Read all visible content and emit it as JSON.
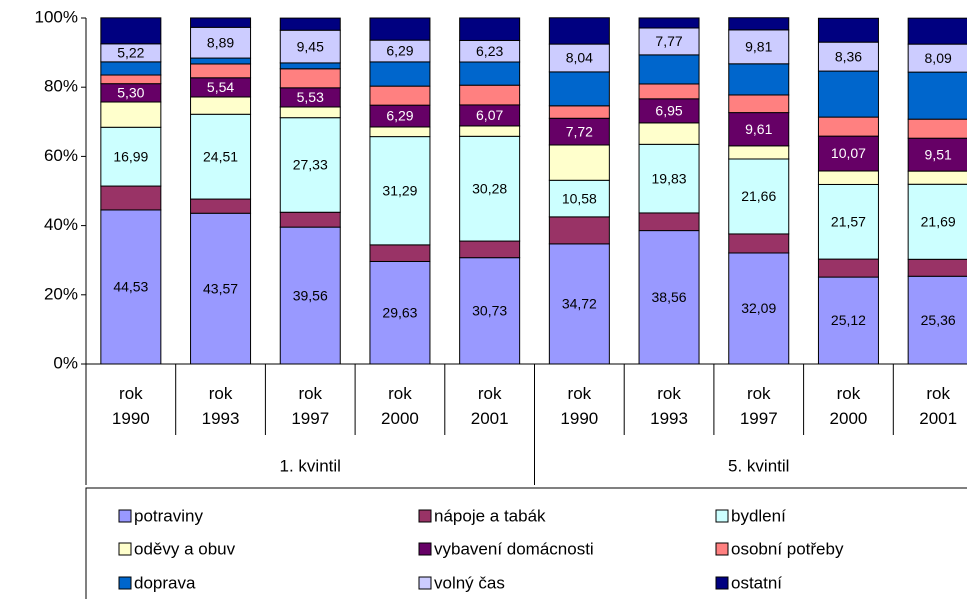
{
  "chart_data": {
    "type": "stacked_bar_percent",
    "groups": [
      {
        "name": "1. kvintil",
        "categories": [
          "rok 1990",
          "rok 1993",
          "rok 1997",
          "rok 2000",
          "rok 2001"
        ]
      },
      {
        "name": "5. kvintil",
        "categories": [
          "rok 1990",
          "rok 1993",
          "rok 1997",
          "rok 2000",
          "rok 2001"
        ]
      }
    ],
    "ylim": [
      0,
      100
    ],
    "yticks": [
      {
        "value": 0,
        "label": "0%"
      },
      {
        "value": 20,
        "label": "20%"
      },
      {
        "value": 40,
        "label": "40%"
      },
      {
        "value": 60,
        "label": "60%"
      },
      {
        "value": 80,
        "label": "80%"
      },
      {
        "value": 100,
        "label": "100%"
      }
    ],
    "grid": false,
    "legend": "bottom",
    "series": [
      {
        "name": "potraviny",
        "color": "#9999ff",
        "label_color": "#000000",
        "values": [
          44.53,
          43.57,
          39.56,
          29.63,
          30.73,
          34.72,
          38.56,
          32.09,
          25.12,
          25.36
        ],
        "value_labels": [
          "44,53",
          "43,57",
          "39,56",
          "29,63",
          "30,73",
          "34,72",
          "38,56",
          "32,09",
          "25,12",
          "25,36"
        ]
      },
      {
        "name": "nápoje a tabák",
        "color": "#993366",
        "label_color": "#ffffff",
        "values": [
          6.9,
          4.1,
          4.3,
          4.8,
          4.8,
          7.8,
          5.1,
          5.5,
          5.2,
          4.9
        ],
        "value_labels": [
          null,
          null,
          null,
          null,
          null,
          null,
          null,
          null,
          null,
          null
        ]
      },
      {
        "name": "bydlení",
        "color": "#ccffff",
        "label_color": "#000000",
        "values": [
          16.99,
          24.51,
          27.33,
          31.29,
          30.28,
          10.58,
          19.83,
          21.66,
          21.57,
          21.69
        ],
        "value_labels": [
          "16,99",
          "24,51",
          "27,33",
          "31,29",
          "30,28",
          "10,58",
          "19,83",
          "21,66",
          "21,57",
          "21,69"
        ]
      },
      {
        "name": "oděvy a obuv",
        "color": "#ffffcc",
        "label_color": "#000000",
        "values": [
          7.3,
          5.0,
          3.1,
          2.8,
          3.0,
          10.2,
          6.2,
          3.8,
          3.9,
          3.8
        ],
        "value_labels": [
          null,
          null,
          null,
          null,
          null,
          null,
          null,
          null,
          null,
          null
        ]
      },
      {
        "name": "vybavení domácnosti",
        "color": "#660066",
        "label_color": "#ffffff",
        "values": [
          5.3,
          5.54,
          5.53,
          6.29,
          6.07,
          7.72,
          6.95,
          9.61,
          10.07,
          9.51
        ],
        "value_labels": [
          "5,30",
          "5,54",
          "5,53",
          "6,29",
          "6,07",
          "7,72",
          "6,95",
          "9,61",
          "10,07",
          "9,51"
        ]
      },
      {
        "name": "osobní potřeby",
        "color": "#ff8080",
        "label_color": "#000000",
        "values": [
          2.5,
          4.0,
          5.5,
          5.5,
          5.7,
          3.6,
          4.3,
          5.1,
          5.5,
          5.5
        ],
        "value_labels": [
          null,
          null,
          null,
          null,
          null,
          null,
          null,
          null,
          null,
          null
        ]
      },
      {
        "name": "doprava",
        "color": "#0066cc",
        "label_color": "#ffffff",
        "values": [
          3.8,
          1.7,
          1.7,
          7.0,
          6.7,
          9.8,
          8.4,
          9.0,
          13.3,
          13.6
        ],
        "value_labels": [
          null,
          null,
          null,
          null,
          null,
          null,
          null,
          null,
          null,
          null
        ]
      },
      {
        "name": "volný čas",
        "color": "#ccccff",
        "label_color": "#000000",
        "values": [
          5.22,
          8.89,
          9.45,
          6.29,
          6.23,
          8.04,
          7.77,
          9.81,
          8.36,
          8.09
        ],
        "value_labels": [
          "5,22",
          "8,89",
          "9,45",
          "6,29",
          "6,23",
          "8,04",
          "7,77",
          "9,81",
          "8,36",
          "8,09"
        ]
      },
      {
        "name": "ostatní",
        "color": "#000080",
        "label_color": "#ffffff",
        "values": [
          7.5,
          2.7,
          3.5,
          6.4,
          6.5,
          7.6,
          2.9,
          3.5,
          6.9,
          7.5
        ],
        "value_labels": [
          null,
          null,
          null,
          null,
          null,
          null,
          null,
          null,
          null,
          null
        ]
      }
    ]
  }
}
